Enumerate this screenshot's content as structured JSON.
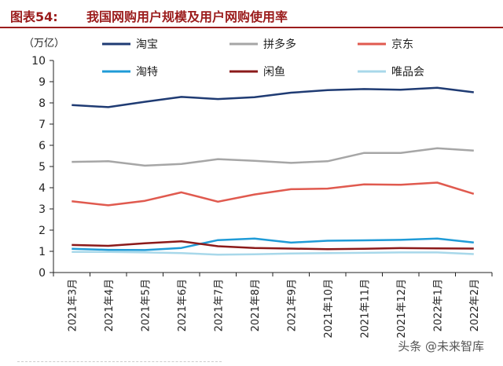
{
  "figure": {
    "label": "图表54:",
    "title": "我国网购用户规模及用户网购使用率"
  },
  "watermark": "头条 @未来智库",
  "chart_data": {
    "type": "line",
    "unit_label": "（万亿）",
    "x": [
      "2021年3月",
      "2021年4月",
      "2021年5月",
      "2021年6月",
      "2021年7月",
      "2021年8月",
      "2021年9月",
      "2021年10月",
      "2021年11月",
      "2021年12月",
      "2022年1月",
      "2022年2月"
    ],
    "ylim": [
      0,
      10
    ],
    "yticks": [
      0,
      1,
      2,
      3,
      4,
      5,
      6,
      7,
      8,
      9,
      10
    ],
    "grid": false,
    "legend_position": "top",
    "series": [
      {
        "name": "淘宝",
        "color": "#1f3b73",
        "values": [
          7.9,
          7.8,
          8.05,
          8.28,
          8.18,
          8.27,
          8.48,
          8.6,
          8.65,
          8.62,
          8.71,
          8.5
        ]
      },
      {
        "name": "拼多多",
        "color": "#a6a6a6",
        "values": [
          5.22,
          5.25,
          5.04,
          5.12,
          5.35,
          5.27,
          5.17,
          5.25,
          5.64,
          5.64,
          5.86,
          5.75
        ]
      },
      {
        "name": "京东",
        "color": "#e05a4f",
        "values": [
          3.36,
          3.17,
          3.38,
          3.78,
          3.34,
          3.68,
          3.93,
          3.96,
          4.16,
          4.14,
          4.24,
          3.71
        ]
      },
      {
        "name": "淘特",
        "color": "#1f9bd7",
        "values": [
          1.12,
          1.07,
          1.06,
          1.16,
          1.53,
          1.6,
          1.41,
          1.5,
          1.52,
          1.54,
          1.6,
          1.42
        ]
      },
      {
        "name": "闲鱼",
        "color": "#8b1a1a",
        "values": [
          1.3,
          1.26,
          1.38,
          1.47,
          1.24,
          1.16,
          1.13,
          1.1,
          1.12,
          1.15,
          1.14,
          1.13
        ]
      },
      {
        "name": "唯品会",
        "color": "#a8d8ea",
        "values": [
          0.97,
          0.97,
          0.95,
          0.92,
          0.84,
          0.86,
          0.9,
          0.92,
          0.93,
          0.95,
          0.95,
          0.87
        ]
      }
    ]
  }
}
